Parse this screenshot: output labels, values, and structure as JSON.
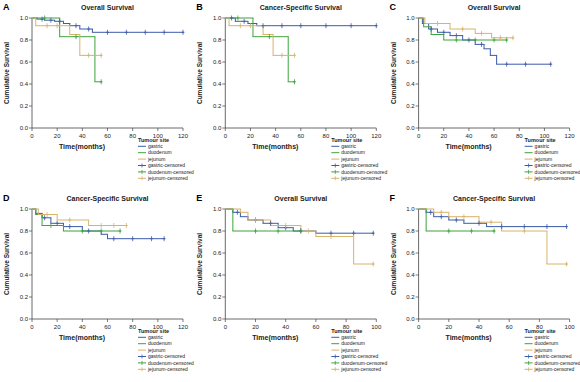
{
  "chart_data": [
    {
      "type": "step",
      "title": "Overall Survival",
      "annotations": [
        "A"
      ],
      "x_label": "Time(months)",
      "y_label": "Cumulative Survival",
      "legend_title": "Tumour site",
      "legend": "bottom right",
      "xlim": [
        0,
        120
      ],
      "xticks": [
        0,
        20,
        40,
        60,
        80,
        100,
        120
      ],
      "ylim": [
        0,
        1
      ],
      "yticks": [
        {
          "value": 0,
          "label": "0.0"
        },
        0.2,
        0.4,
        0.6,
        0.8,
        {
          "value": 1,
          "label": "1.0"
        }
      ],
      "series": [
        {
          "name": "gastric",
          "type": "step",
          "line_style": "solid",
          "color": "#3b5ba9",
          "x": [
            0,
            4,
            10,
            18,
            25,
            30,
            38,
            48,
            120
          ],
          "values": [
            1.0,
            0.99,
            0.98,
            0.97,
            0.95,
            0.93,
            0.9,
            0.87,
            0.87
          ]
        },
        {
          "name": "duodenum",
          "type": "step",
          "line_style": "solid",
          "color": "#3ea23e",
          "x": [
            0,
            22,
            50,
            55
          ],
          "values": [
            1.0,
            0.83,
            0.42,
            0.42
          ]
        },
        {
          "name": "jejunum",
          "type": "step",
          "line_style": "solid",
          "color": "#d8b36a",
          "x": [
            0,
            3,
            30,
            38,
            55
          ],
          "values": [
            1.0,
            0.93,
            0.85,
            0.66,
            0.66
          ]
        },
        {
          "name": "gastric-censored",
          "type": "scatter",
          "marker": "plus",
          "color": "#3b5ba9",
          "x": [
            8,
            15,
            22,
            35,
            45,
            60,
            75,
            90,
            105,
            120
          ],
          "values": [
            0.99,
            0.98,
            0.97,
            0.93,
            0.9,
            0.87,
            0.87,
            0.87,
            0.87,
            0.87
          ]
        },
        {
          "name": "duodenum-censored",
          "type": "scatter",
          "marker": "plus",
          "color": "#3ea23e",
          "x": [
            10,
            35,
            55
          ],
          "values": [
            1.0,
            0.83,
            0.42
          ]
        },
        {
          "name": "jejunum-censored",
          "type": "scatter",
          "marker": "plus",
          "color": "#d8b36a",
          "x": [
            12,
            20,
            45,
            55
          ],
          "values": [
            0.93,
            0.93,
            0.66,
            0.66
          ]
        }
      ]
    },
    {
      "type": "step",
      "title": "Cancer-Specific Survival",
      "annotations": [
        "B"
      ],
      "x_label": "Time(months)",
      "y_label": "Cumulative Survival",
      "legend_title": "Tumour site",
      "legend": "bottom right",
      "xlim": [
        0,
        120
      ],
      "xticks": [
        0,
        20,
        40,
        60,
        80,
        100,
        120
      ],
      "ylim": [
        0,
        1
      ],
      "yticks": [
        {
          "value": 0,
          "label": "0.0"
        },
        0.2,
        0.4,
        0.6,
        0.8,
        {
          "value": 1,
          "label": "1.0"
        }
      ],
      "series": [
        {
          "name": "gastric",
          "type": "step",
          "line_style": "solid",
          "color": "#3b5ba9",
          "x": [
            0,
            8,
            18,
            25,
            120
          ],
          "values": [
            1.0,
            0.97,
            0.95,
            0.93,
            0.93
          ]
        },
        {
          "name": "duodenum",
          "type": "step",
          "line_style": "solid",
          "color": "#3ea23e",
          "x": [
            0,
            22,
            50,
            55
          ],
          "values": [
            1.0,
            0.83,
            0.42,
            0.42
          ]
        },
        {
          "name": "jejunum",
          "type": "step",
          "line_style": "solid",
          "color": "#d8b36a",
          "x": [
            0,
            3,
            30,
            38,
            55
          ],
          "values": [
            1.0,
            0.93,
            0.85,
            0.66,
            0.66
          ]
        },
        {
          "name": "gastric-censored",
          "type": "scatter",
          "marker": "plus",
          "color": "#3b5ba9",
          "x": [
            5,
            15,
            30,
            45,
            60,
            80,
            100,
            120
          ],
          "values": [
            1.0,
            0.97,
            0.93,
            0.93,
            0.93,
            0.93,
            0.93,
            0.93
          ]
        },
        {
          "name": "duodenum-censored",
          "type": "scatter",
          "marker": "plus",
          "color": "#3ea23e",
          "x": [
            10,
            35,
            55
          ],
          "values": [
            1.0,
            0.83,
            0.42
          ]
        },
        {
          "name": "jejunum-censored",
          "type": "scatter",
          "marker": "plus",
          "color": "#d8b36a",
          "x": [
            12,
            20,
            45,
            55
          ],
          "values": [
            0.93,
            0.93,
            0.66,
            0.66
          ]
        }
      ]
    },
    {
      "type": "step",
      "title": "Overall Survival",
      "annotations": [
        "C"
      ],
      "x_label": "Time(months)",
      "y_label": "Cumulative Survival",
      "legend_title": "Tumour site",
      "legend": "bottom right",
      "xlim": [
        0,
        120
      ],
      "xticks": [
        0,
        20,
        40,
        60,
        80,
        100,
        120
      ],
      "ylim": [
        0,
        1
      ],
      "yticks": [
        {
          "value": 0,
          "label": "0.0"
        },
        0.2,
        0.4,
        0.6,
        0.8,
        {
          "value": 1,
          "label": "1.0"
        }
      ],
      "series": [
        {
          "name": "gastric",
          "type": "step",
          "line_style": "solid",
          "color": "#3b5ba9",
          "x": [
            0,
            3,
            8,
            15,
            25,
            35,
            45,
            52,
            57,
            62,
            105
          ],
          "values": [
            1.0,
            0.95,
            0.9,
            0.87,
            0.84,
            0.8,
            0.76,
            0.72,
            0.66,
            0.58,
            0.58
          ]
        },
        {
          "name": "duodenum",
          "type": "step",
          "line_style": "solid",
          "color": "#3ea23e",
          "x": [
            0,
            4,
            10,
            20,
            70
          ],
          "values": [
            1.0,
            0.92,
            0.85,
            0.8,
            0.8
          ]
        },
        {
          "name": "jejunum",
          "type": "step",
          "line_style": "solid",
          "color": "#d8b36a",
          "x": [
            0,
            5,
            25,
            45,
            58,
            75
          ],
          "values": [
            1.0,
            0.95,
            0.9,
            0.86,
            0.82,
            0.82
          ]
        },
        {
          "name": "gastric-censored",
          "type": "scatter",
          "marker": "plus",
          "color": "#3b5ba9",
          "x": [
            10,
            20,
            30,
            40,
            50,
            70,
            85,
            105
          ],
          "values": [
            0.9,
            0.87,
            0.84,
            0.8,
            0.76,
            0.58,
            0.58,
            0.58
          ]
        },
        {
          "name": "duodenum-censored",
          "type": "scatter",
          "marker": "plus",
          "color": "#3ea23e",
          "x": [
            30,
            45,
            60,
            70
          ],
          "values": [
            0.8,
            0.8,
            0.8,
            0.8
          ]
        },
        {
          "name": "jejunum-censored",
          "type": "scatter",
          "marker": "plus",
          "color": "#d8b36a",
          "x": [
            15,
            35,
            50,
            65,
            75
          ],
          "values": [
            0.95,
            0.9,
            0.86,
            0.82,
            0.82
          ]
        }
      ]
    },
    {
      "type": "step",
      "title": "Cancer-Specific Survival",
      "annotations": [
        "D"
      ],
      "x_label": "Time(months)",
      "y_label": "Cumulative Survival",
      "legend_title": "Tumour site",
      "legend": "bottom right",
      "xlim": [
        0,
        120
      ],
      "xticks": [
        0,
        20,
        40,
        60,
        80,
        100,
        120
      ],
      "ylim": [
        0,
        1
      ],
      "yticks": [
        {
          "value": 0,
          "label": "0.0"
        },
        0.2,
        0.4,
        0.6,
        0.8,
        {
          "value": 1,
          "label": "1.0"
        }
      ],
      "series": [
        {
          "name": "gastric",
          "type": "step",
          "line_style": "solid",
          "color": "#3b5ba9",
          "x": [
            0,
            3,
            8,
            15,
            25,
            40,
            55,
            60,
            105
          ],
          "values": [
            1.0,
            0.96,
            0.92,
            0.87,
            0.84,
            0.8,
            0.77,
            0.73,
            0.73
          ]
        },
        {
          "name": "duodenum",
          "type": "step",
          "line_style": "solid",
          "color": "#3ea23e",
          "x": [
            0,
            3,
            8,
            25,
            70
          ],
          "values": [
            1.0,
            0.95,
            0.85,
            0.8,
            0.8
          ]
        },
        {
          "name": "jejunum",
          "type": "step",
          "line_style": "solid",
          "color": "#d8b36a",
          "x": [
            0,
            5,
            20,
            45,
            75
          ],
          "values": [
            1.0,
            0.95,
            0.9,
            0.85,
            0.85
          ]
        },
        {
          "name": "gastric-censored",
          "type": "scatter",
          "marker": "plus",
          "color": "#3b5ba9",
          "x": [
            10,
            20,
            30,
            45,
            65,
            80,
            95,
            105
          ],
          "values": [
            0.92,
            0.87,
            0.84,
            0.8,
            0.73,
            0.73,
            0.73,
            0.73
          ]
        },
        {
          "name": "duodenum-censored",
          "type": "scatter",
          "marker": "plus",
          "color": "#3ea23e",
          "x": [
            15,
            40,
            55,
            70
          ],
          "values": [
            0.85,
            0.8,
            0.8,
            0.8
          ]
        },
        {
          "name": "jejunum-censored",
          "type": "scatter",
          "marker": "plus",
          "color": "#d8b36a",
          "x": [
            12,
            30,
            55,
            65,
            75
          ],
          "values": [
            0.95,
            0.9,
            0.85,
            0.85,
            0.85
          ]
        }
      ]
    },
    {
      "type": "step",
      "title": "Overall Survival",
      "annotations": [
        "E"
      ],
      "x_label": "Time(months)",
      "y_label": "Cumulative Survival",
      "legend_title": "Tumour site",
      "legend": "bottom right",
      "xlim": [
        0,
        100
      ],
      "xticks": [
        0,
        20,
        40,
        60,
        80,
        100
      ],
      "ylim": [
        0,
        1
      ],
      "yticks": [
        {
          "value": 0,
          "label": "0.0"
        },
        0.2,
        0.4,
        0.6,
        0.8,
        {
          "value": 1,
          "label": "1.0"
        }
      ],
      "series": [
        {
          "name": "gastric",
          "type": "step",
          "line_style": "solid",
          "color": "#3b5ba9",
          "x": [
            0,
            5,
            10,
            15,
            25,
            35,
            45,
            60,
            98
          ],
          "values": [
            1.0,
            0.97,
            0.93,
            0.9,
            0.87,
            0.83,
            0.8,
            0.78,
            0.78
          ]
        },
        {
          "name": "duodenum",
          "type": "step",
          "line_style": "solid",
          "color": "#3ea23e",
          "x": [
            0,
            5,
            50
          ],
          "values": [
            1.0,
            0.8,
            0.8
          ]
        },
        {
          "name": "jejunum",
          "type": "step",
          "line_style": "solid",
          "color": "#d8b36a",
          "x": [
            0,
            10,
            15,
            30,
            50,
            60,
            85,
            98
          ],
          "values": [
            1.0,
            0.97,
            0.9,
            0.85,
            0.8,
            0.75,
            0.5,
            0.5
          ]
        },
        {
          "name": "gastric-censored",
          "type": "scatter",
          "marker": "plus",
          "color": "#3b5ba9",
          "x": [
            8,
            20,
            30,
            40,
            50,
            70,
            85,
            98
          ],
          "values": [
            0.97,
            0.9,
            0.87,
            0.83,
            0.8,
            0.78,
            0.78,
            0.78
          ]
        },
        {
          "name": "duodenum-censored",
          "type": "scatter",
          "marker": "plus",
          "color": "#3ea23e",
          "x": [
            20,
            35,
            50
          ],
          "values": [
            0.8,
            0.8,
            0.8
          ]
        },
        {
          "name": "jejunum-censored",
          "type": "scatter",
          "marker": "plus",
          "color": "#d8b36a",
          "x": [
            20,
            40,
            55,
            70,
            98
          ],
          "values": [
            0.9,
            0.85,
            0.8,
            0.75,
            0.5
          ]
        }
      ]
    },
    {
      "type": "step",
      "title": "Cancer-Specific Survival",
      "annotations": [
        "F"
      ],
      "x_label": "Time(months)",
      "y_label": "Cumulative Survival",
      "legend_title": "Tumour site",
      "legend": "bottom right",
      "xlim": [
        0,
        100
      ],
      "xticks": [
        0,
        20,
        40,
        60,
        80,
        100
      ],
      "ylim": [
        0,
        1
      ],
      "yticks": [
        {
          "value": 0,
          "label": "0.0"
        },
        0.2,
        0.4,
        0.6,
        0.8,
        {
          "value": 1,
          "label": "1.0"
        }
      ],
      "series": [
        {
          "name": "gastric",
          "type": "step",
          "line_style": "solid",
          "color": "#3b5ba9",
          "x": [
            0,
            5,
            10,
            20,
            30,
            45,
            98
          ],
          "values": [
            1.0,
            0.97,
            0.93,
            0.9,
            0.87,
            0.84,
            0.84
          ]
        },
        {
          "name": "duodenum",
          "type": "step",
          "line_style": "solid",
          "color": "#3ea23e",
          "x": [
            0,
            5,
            50
          ],
          "values": [
            1.0,
            0.8,
            0.8
          ]
        },
        {
          "name": "jejunum",
          "type": "step",
          "line_style": "solid",
          "color": "#d8b36a",
          "x": [
            0,
            10,
            20,
            40,
            55,
            85,
            98
          ],
          "values": [
            1.0,
            0.97,
            0.93,
            0.88,
            0.8,
            0.5,
            0.5
          ]
        },
        {
          "name": "gastric-censored",
          "type": "scatter",
          "marker": "plus",
          "color": "#3b5ba9",
          "x": [
            8,
            15,
            25,
            40,
            55,
            70,
            85,
            98
          ],
          "values": [
            0.97,
            0.93,
            0.9,
            0.87,
            0.84,
            0.84,
            0.84,
            0.84
          ]
        },
        {
          "name": "duodenum-censored",
          "type": "scatter",
          "marker": "plus",
          "color": "#3ea23e",
          "x": [
            20,
            35,
            50
          ],
          "values": [
            0.8,
            0.8,
            0.8
          ]
        },
        {
          "name": "jejunum-censored",
          "type": "scatter",
          "marker": "plus",
          "color": "#d8b36a",
          "x": [
            15,
            30,
            48,
            70,
            98
          ],
          "values": [
            0.97,
            0.93,
            0.88,
            0.8,
            0.5
          ]
        }
      ]
    }
  ]
}
